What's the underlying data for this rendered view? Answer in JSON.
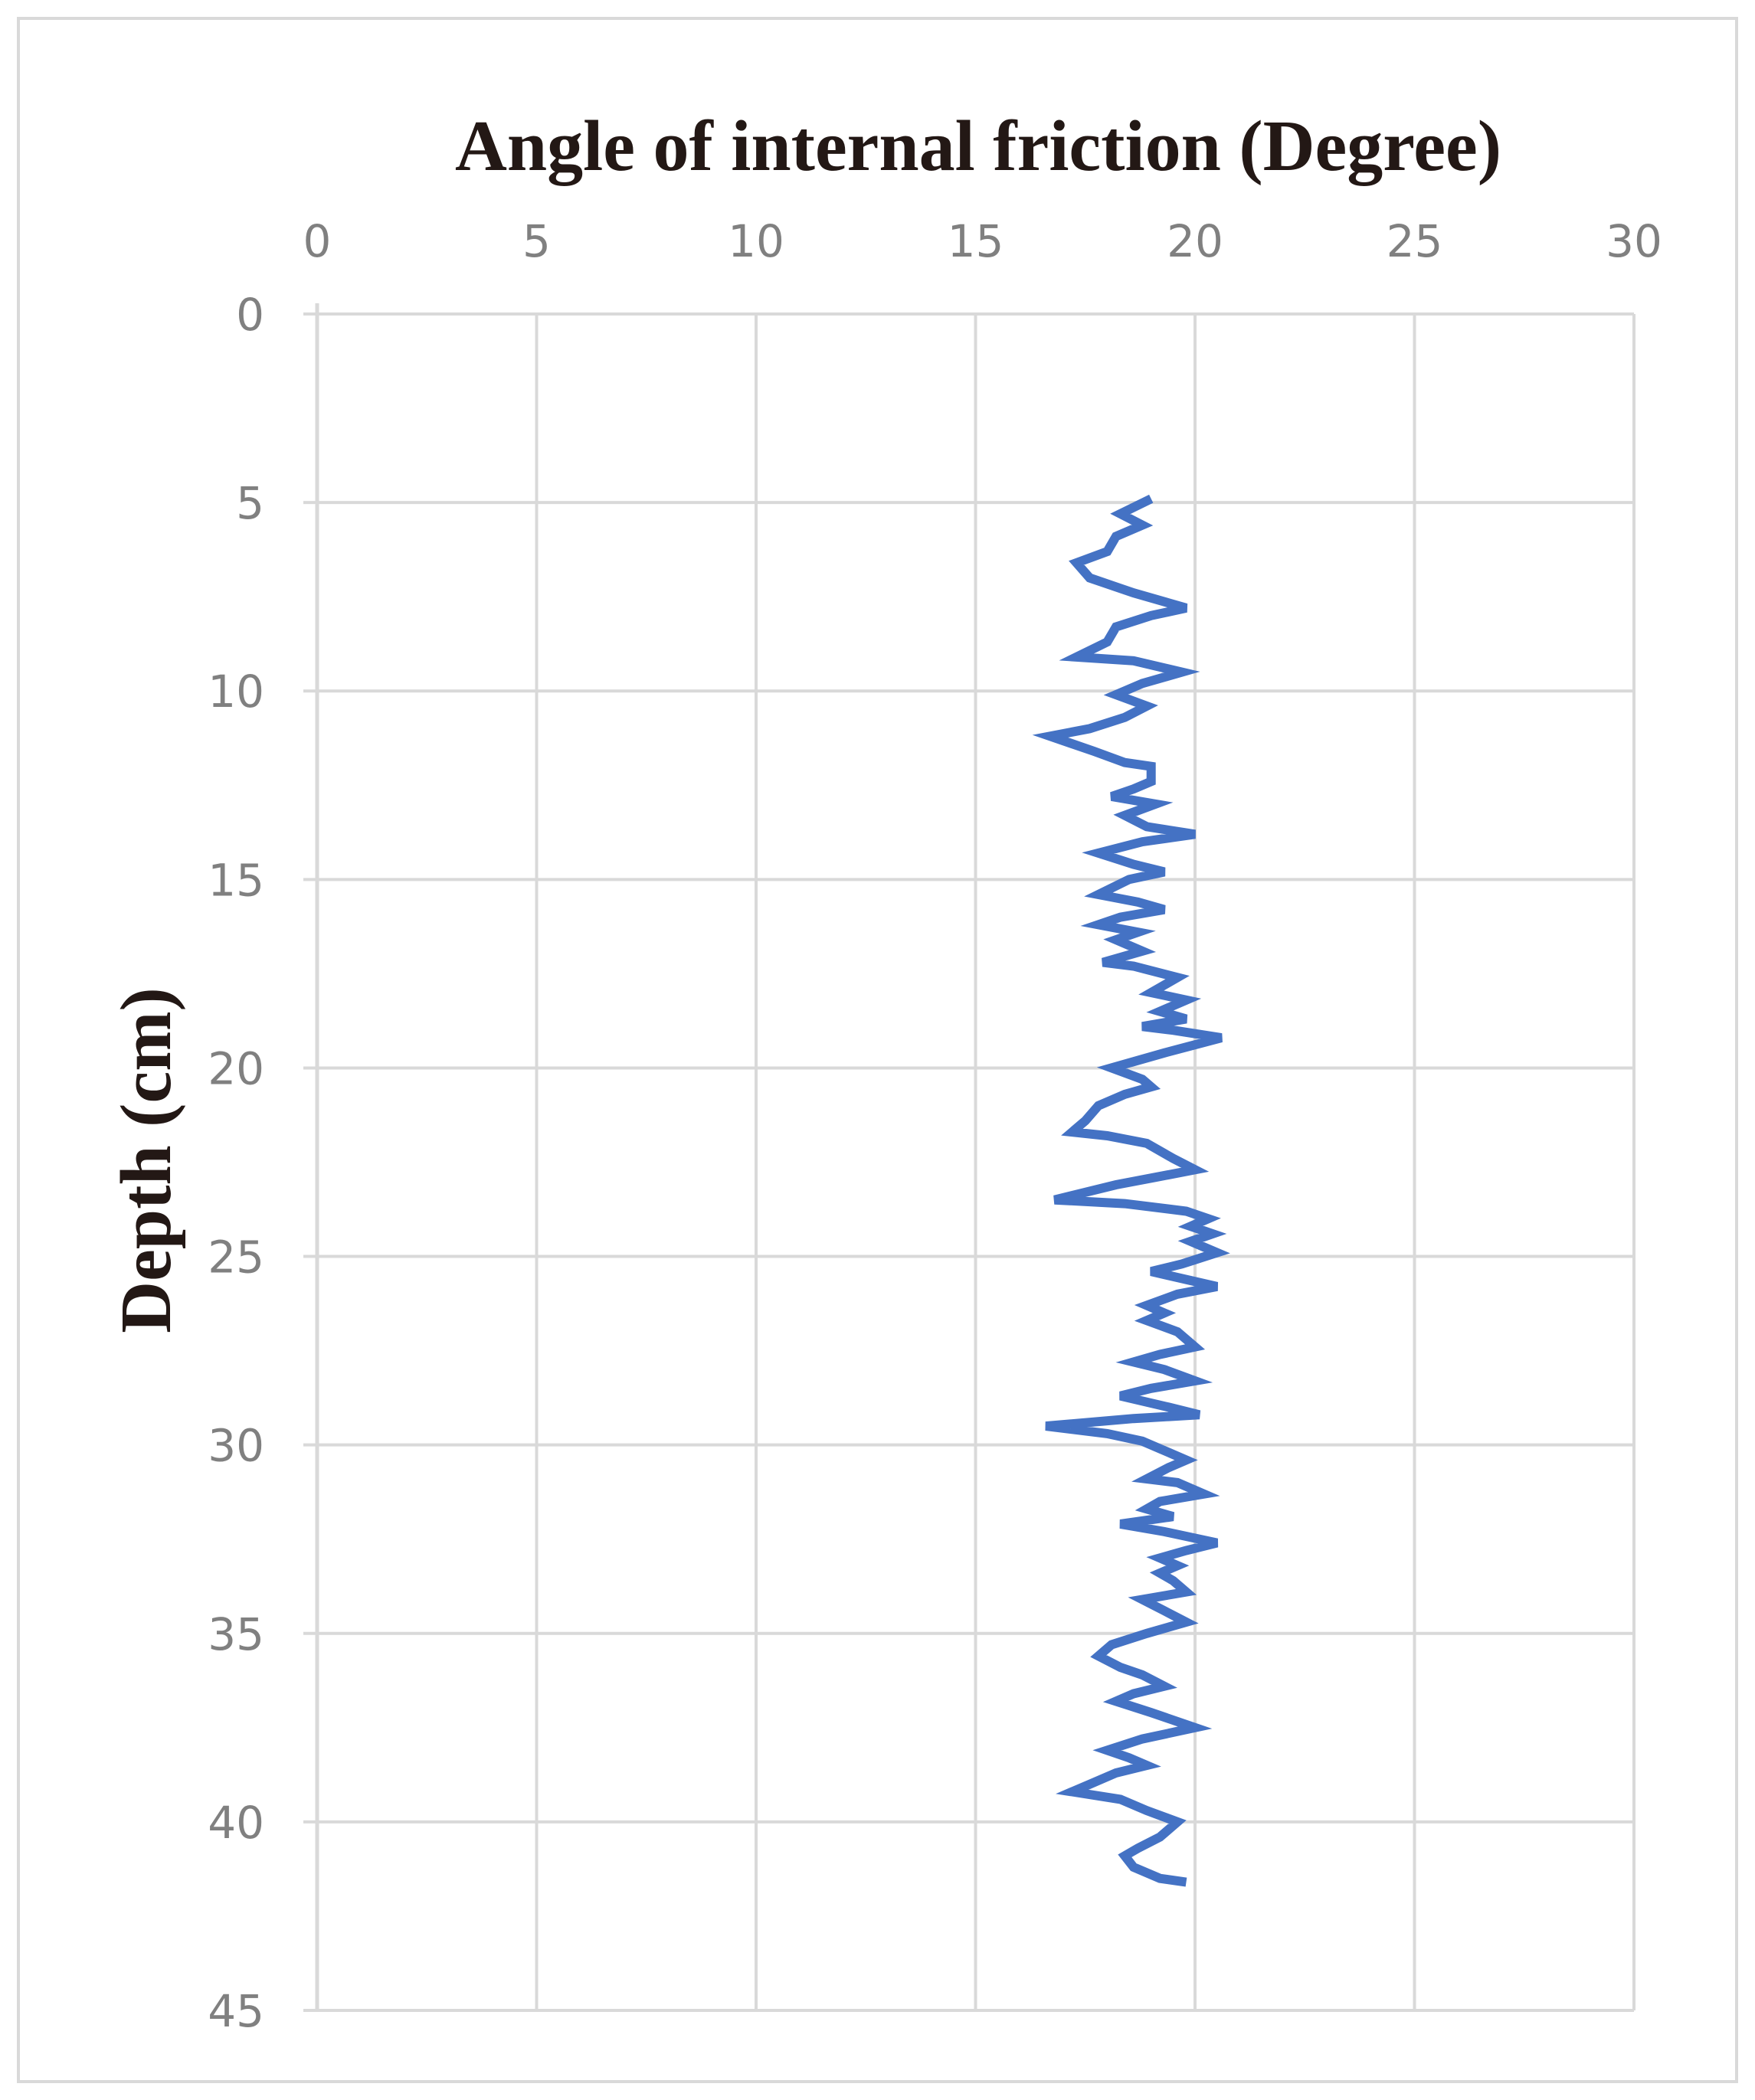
{
  "chart_data": {
    "type": "line",
    "title": "Angle of internal friction (Degree)",
    "xlabel": "Angle of internal friction (Degree)",
    "ylabel": "Depth (cm)",
    "x_axis_position": "top",
    "y_axis_inverted": true,
    "xlim": [
      0,
      30
    ],
    "ylim": [
      0,
      45
    ],
    "x_ticks": [
      "0",
      "5",
      "10",
      "15",
      "20",
      "25",
      "30"
    ],
    "y_ticks": [
      "0",
      "5",
      "10",
      "15",
      "20",
      "25",
      "30",
      "35",
      "40",
      "45"
    ],
    "grid": true,
    "line_color": "#4472c4",
    "grid_color": "#d9d9d9",
    "series": [
      {
        "points": [
          [
            19.0,
            4.9
          ],
          [
            18.3,
            5.3
          ],
          [
            18.8,
            5.6
          ],
          [
            18.2,
            5.9
          ],
          [
            18.0,
            6.3
          ],
          [
            17.3,
            6.6
          ],
          [
            17.6,
            7.0
          ],
          [
            18.6,
            7.4
          ],
          [
            19.8,
            7.8
          ],
          [
            19.0,
            8.0
          ],
          [
            18.2,
            8.3
          ],
          [
            18.0,
            8.7
          ],
          [
            17.3,
            9.1
          ],
          [
            18.6,
            9.2
          ],
          [
            19.7,
            9.5
          ],
          [
            18.8,
            9.8
          ],
          [
            18.2,
            10.1
          ],
          [
            18.9,
            10.4
          ],
          [
            18.4,
            10.7
          ],
          [
            17.6,
            11.0
          ],
          [
            16.7,
            11.2
          ],
          [
            17.7,
            11.6
          ],
          [
            18.4,
            11.9
          ],
          [
            19.0,
            12.0
          ],
          [
            19.0,
            12.4
          ],
          [
            18.6,
            12.6
          ],
          [
            18.1,
            12.8
          ],
          [
            19.1,
            13.0
          ],
          [
            18.4,
            13.3
          ],
          [
            18.9,
            13.6
          ],
          [
            20.0,
            13.8
          ],
          [
            18.8,
            14.0
          ],
          [
            17.8,
            14.3
          ],
          [
            18.6,
            14.6
          ],
          [
            19.3,
            14.8
          ],
          [
            18.5,
            15.0
          ],
          [
            17.8,
            15.4
          ],
          [
            18.7,
            15.6
          ],
          [
            19.3,
            15.8
          ],
          [
            18.3,
            16.0
          ],
          [
            17.8,
            16.2
          ],
          [
            18.7,
            16.4
          ],
          [
            18.2,
            16.6
          ],
          [
            18.8,
            16.9
          ],
          [
            17.9,
            17.2
          ],
          [
            18.6,
            17.3
          ],
          [
            19.6,
            17.6
          ],
          [
            19.0,
            18.0
          ],
          [
            19.8,
            18.2
          ],
          [
            19.2,
            18.5
          ],
          [
            19.8,
            18.7
          ],
          [
            18.8,
            18.9
          ],
          [
            19.5,
            19.0
          ],
          [
            20.6,
            19.2
          ],
          [
            19.3,
            19.6
          ],
          [
            18.1,
            20.0
          ],
          [
            18.8,
            20.3
          ],
          [
            19.0,
            20.5
          ],
          [
            18.4,
            20.7
          ],
          [
            17.8,
            21.0
          ],
          [
            17.5,
            21.4
          ],
          [
            17.2,
            21.7
          ],
          [
            18.0,
            21.8
          ],
          [
            18.9,
            22.0
          ],
          [
            19.5,
            22.4
          ],
          [
            20.0,
            22.7
          ],
          [
            19.1,
            22.9
          ],
          [
            18.2,
            23.1
          ],
          [
            16.8,
            23.5
          ],
          [
            18.4,
            23.6
          ],
          [
            19.8,
            23.8
          ],
          [
            20.3,
            24.0
          ],
          [
            19.9,
            24.2
          ],
          [
            20.4,
            24.4
          ],
          [
            19.9,
            24.6
          ],
          [
            20.5,
            24.9
          ],
          [
            19.7,
            25.2
          ],
          [
            19.0,
            25.4
          ],
          [
            20.5,
            25.8
          ],
          [
            19.6,
            26.0
          ],
          [
            18.9,
            26.3
          ],
          [
            19.3,
            26.5
          ],
          [
            18.9,
            26.7
          ],
          [
            19.6,
            27.0
          ],
          [
            20.0,
            27.4
          ],
          [
            19.2,
            27.6
          ],
          [
            18.6,
            27.8
          ],
          [
            19.3,
            28.0
          ],
          [
            20.0,
            28.3
          ],
          [
            19.0,
            28.5
          ],
          [
            18.3,
            28.7
          ],
          [
            19.4,
            29.0
          ],
          [
            20.1,
            29.2
          ],
          [
            18.6,
            29.3
          ],
          [
            16.6,
            29.5
          ],
          [
            18.0,
            29.7
          ],
          [
            18.8,
            29.9
          ],
          [
            19.2,
            30.1
          ],
          [
            19.8,
            30.4
          ],
          [
            19.4,
            30.6
          ],
          [
            18.9,
            30.9
          ],
          [
            19.6,
            31.0
          ],
          [
            20.2,
            31.3
          ],
          [
            19.2,
            31.5
          ],
          [
            18.9,
            31.7
          ],
          [
            19.5,
            31.9
          ],
          [
            18.3,
            32.1
          ],
          [
            19.3,
            32.3
          ],
          [
            20.5,
            32.6
          ],
          [
            19.8,
            32.8
          ],
          [
            19.2,
            33.0
          ],
          [
            19.6,
            33.2
          ],
          [
            19.2,
            33.4
          ],
          [
            19.5,
            33.6
          ],
          [
            19.8,
            33.9
          ],
          [
            18.8,
            34.1
          ],
          [
            19.3,
            34.4
          ],
          [
            19.8,
            34.7
          ],
          [
            18.9,
            35.0
          ],
          [
            18.1,
            35.3
          ],
          [
            17.8,
            35.6
          ],
          [
            18.3,
            35.9
          ],
          [
            18.8,
            36.1
          ],
          [
            19.3,
            36.4
          ],
          [
            18.6,
            36.6
          ],
          [
            18.2,
            36.8
          ],
          [
            19.0,
            37.1
          ],
          [
            20.0,
            37.5
          ],
          [
            18.8,
            37.8
          ],
          [
            18.0,
            38.1
          ],
          [
            18.5,
            38.3
          ],
          [
            18.9,
            38.5
          ],
          [
            18.2,
            38.7
          ],
          [
            17.6,
            39.0
          ],
          [
            17.2,
            39.2
          ],
          [
            18.3,
            39.4
          ],
          [
            18.9,
            39.7
          ],
          [
            19.6,
            40.0
          ],
          [
            19.2,
            40.4
          ],
          [
            18.7,
            40.7
          ],
          [
            18.4,
            40.9
          ],
          [
            18.6,
            41.2
          ],
          [
            19.2,
            41.5
          ],
          [
            19.8,
            41.6
          ]
        ]
      }
    ]
  }
}
